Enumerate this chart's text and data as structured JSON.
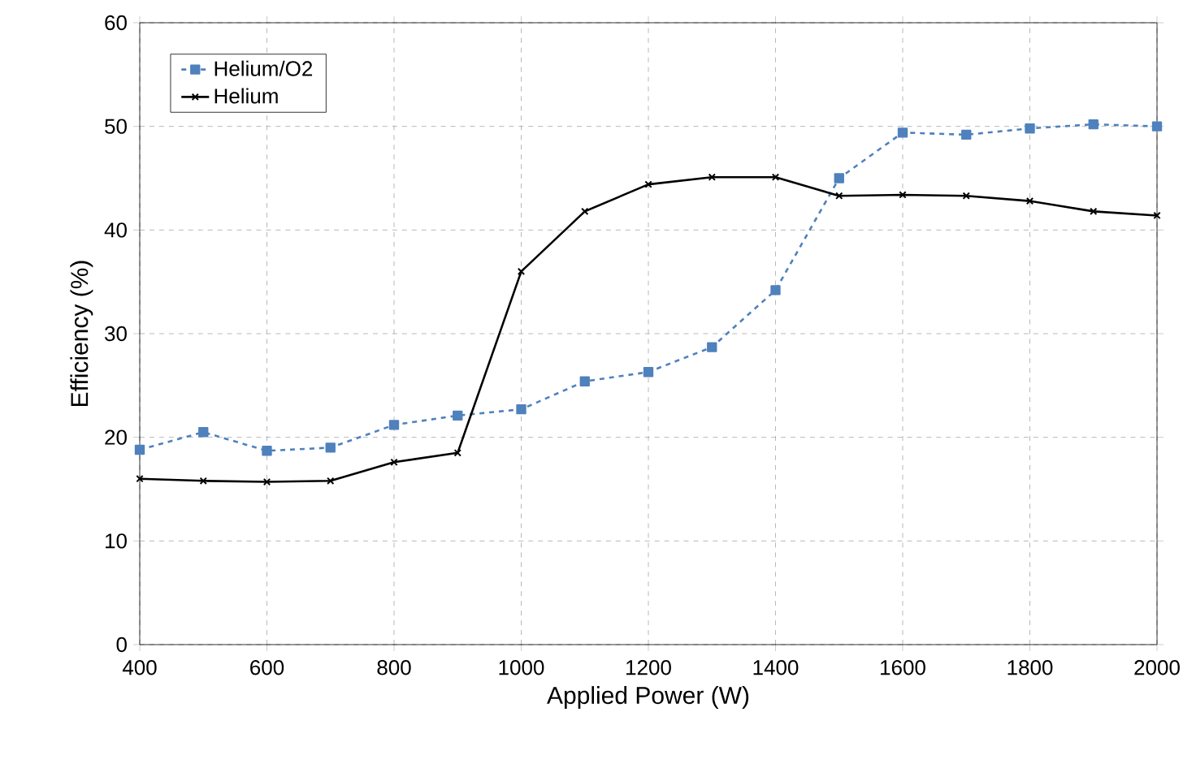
{
  "chart_data": {
    "type": "line",
    "xlabel": "Applied Power (W)",
    "ylabel": "Efficiency (%)",
    "x": [
      400,
      500,
      600,
      700,
      800,
      900,
      1000,
      1100,
      1200,
      1300,
      1400,
      1500,
      1600,
      1700,
      1800,
      1900,
      2000
    ],
    "series": [
      {
        "name": "Helium/O2",
        "color": "#4f81bd",
        "marker": "square",
        "line_style": "dashed",
        "values": [
          18.8,
          20.5,
          18.7,
          19.0,
          21.2,
          22.1,
          22.7,
          25.4,
          26.3,
          28.7,
          34.2,
          45.0,
          49.4,
          49.2,
          49.8,
          50.2,
          50.0
        ]
      },
      {
        "name": "Helium",
        "color": "#000000",
        "marker": "cross",
        "line_style": "solid",
        "values": [
          16.0,
          15.8,
          15.7,
          15.8,
          17.6,
          18.5,
          36.0,
          41.8,
          44.4,
          45.1,
          45.1,
          43.3,
          43.4,
          43.3,
          42.8,
          41.8,
          41.4
        ]
      }
    ],
    "xlim": [
      400,
      2000
    ],
    "ylim": [
      0,
      60
    ],
    "xticks": [
      400,
      600,
      800,
      1000,
      1200,
      1400,
      1600,
      1800,
      2000
    ],
    "yticks": [
      0,
      10,
      20,
      30,
      40,
      50,
      60
    ],
    "grid": true,
    "legend": "top left"
  }
}
